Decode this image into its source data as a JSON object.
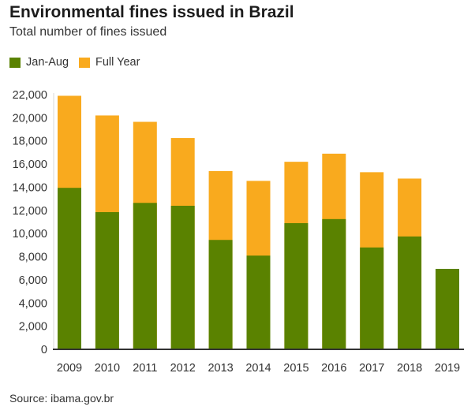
{
  "title": "Environmental fines issued in Brazil",
  "subtitle": "Total number of fines issued",
  "source": "Source: ibama.gov.br",
  "colors": {
    "jan_aug": "#5a8200",
    "full_year": "#f9aa1e",
    "axis": "#333333"
  },
  "chart_data": {
    "type": "bar",
    "stacked": "overlay",
    "title": "Environmental fines issued in Brazil",
    "subtitle": "Total number of fines issued",
    "xlabel": "",
    "ylabel": "",
    "categories": [
      "2009",
      "2010",
      "2011",
      "2012",
      "2013",
      "2014",
      "2015",
      "2016",
      "2017",
      "2018",
      "2019"
    ],
    "series": [
      {
        "name": "Full Year",
        "color": "#f9aa1e",
        "values": [
          21900,
          20200,
          19650,
          18250,
          15400,
          14550,
          16200,
          16900,
          15300,
          14750,
          null
        ]
      },
      {
        "name": "Jan-Aug",
        "color": "#5a8200",
        "values": [
          13950,
          11850,
          12650,
          12400,
          9450,
          8100,
          10900,
          11250,
          8800,
          9750,
          6950
        ]
      }
    ],
    "yticks": [
      "0",
      "2,000",
      "4,000",
      "6,000",
      "8,000",
      "10,000",
      "12,000",
      "14,000",
      "16,000",
      "18,000",
      "20,000",
      "22,000"
    ],
    "ytick_values": [
      0,
      2000,
      4000,
      6000,
      8000,
      10000,
      12000,
      14000,
      16000,
      18000,
      20000,
      22000
    ],
    "ylim": [
      0,
      22000
    ],
    "grid": false,
    "legend": {
      "placement": "top-left",
      "entries": [
        "Jan-Aug",
        "Full Year"
      ]
    },
    "source": "Source: ibama.gov.br"
  }
}
